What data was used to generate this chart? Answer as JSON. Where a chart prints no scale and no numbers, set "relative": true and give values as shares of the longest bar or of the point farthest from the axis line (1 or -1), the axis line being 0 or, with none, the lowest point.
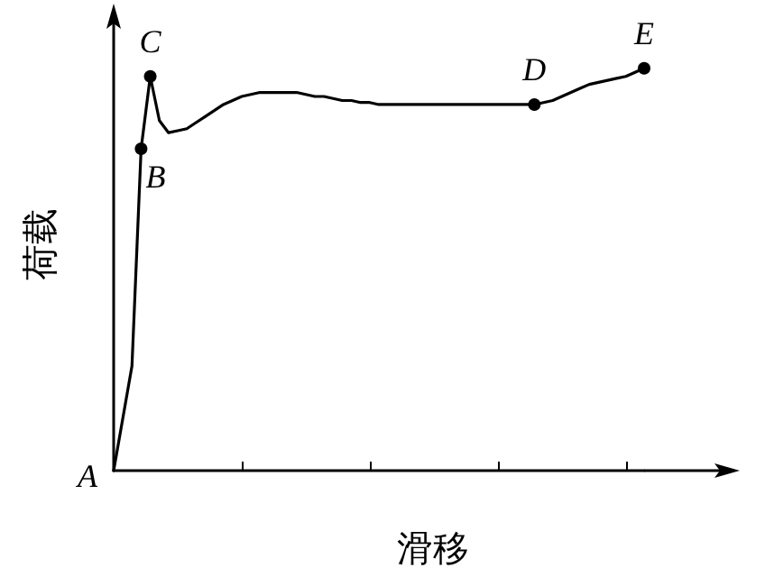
{
  "chart_data": {
    "type": "line",
    "relative": true,
    "xlabel": "滑移",
    "ylabel": "荷载",
    "marker": "none",
    "line_style": "solid",
    "categories": [
      null,
      null,
      null,
      null,
      null,
      null,
      null,
      null,
      null,
      null,
      null,
      null,
      null,
      null,
      null,
      null,
      null,
      null,
      null,
      null,
      null,
      null,
      null,
      null,
      null,
      null,
      null,
      null,
      null,
      null,
      null,
      null,
      null,
      null,
      null,
      null,
      null,
      null,
      null,
      null,
      null,
      null,
      null,
      null,
      null,
      null,
      null,
      null,
      null,
      null,
      null,
      null,
      null,
      null,
      null,
      null,
      null,
      null,
      null
    ],
    "series": [
      {
        "color": "#000000",
        "values": [
          0,
          0.13,
          0.26,
          0.8,
          0.98,
          0.87,
          0.84,
          0.845,
          0.85,
          0.865,
          0.88,
          0.895,
          0.91,
          0.92,
          0.93,
          0.935,
          0.94,
          0.94,
          0.94,
          0.94,
          0.94,
          0.935,
          0.93,
          0.93,
          0.925,
          0.92,
          0.92,
          0.915,
          0.915,
          0.91,
          0.91,
          0.91,
          0.91,
          0.91,
          0.91,
          0.91,
          0.91,
          0.91,
          0.91,
          0.91,
          0.91,
          0.91,
          0.91,
          0.91,
          0.91,
          0.91,
          0.91,
          0.915,
          0.92,
          0.93,
          0.94,
          0.95,
          0.96,
          0.965,
          0.97,
          0.975,
          0.98,
          0.99,
          1
        ]
      }
    ],
    "annotations": [
      "A",
      {
        "text": "B",
        "y": 0.8
      },
      {
        "text": "C",
        "y": 0.98
      },
      {
        "text": "D",
        "y": 0.91
      },
      {
        "text": "E",
        "y": 1
      }
    ]
  }
}
